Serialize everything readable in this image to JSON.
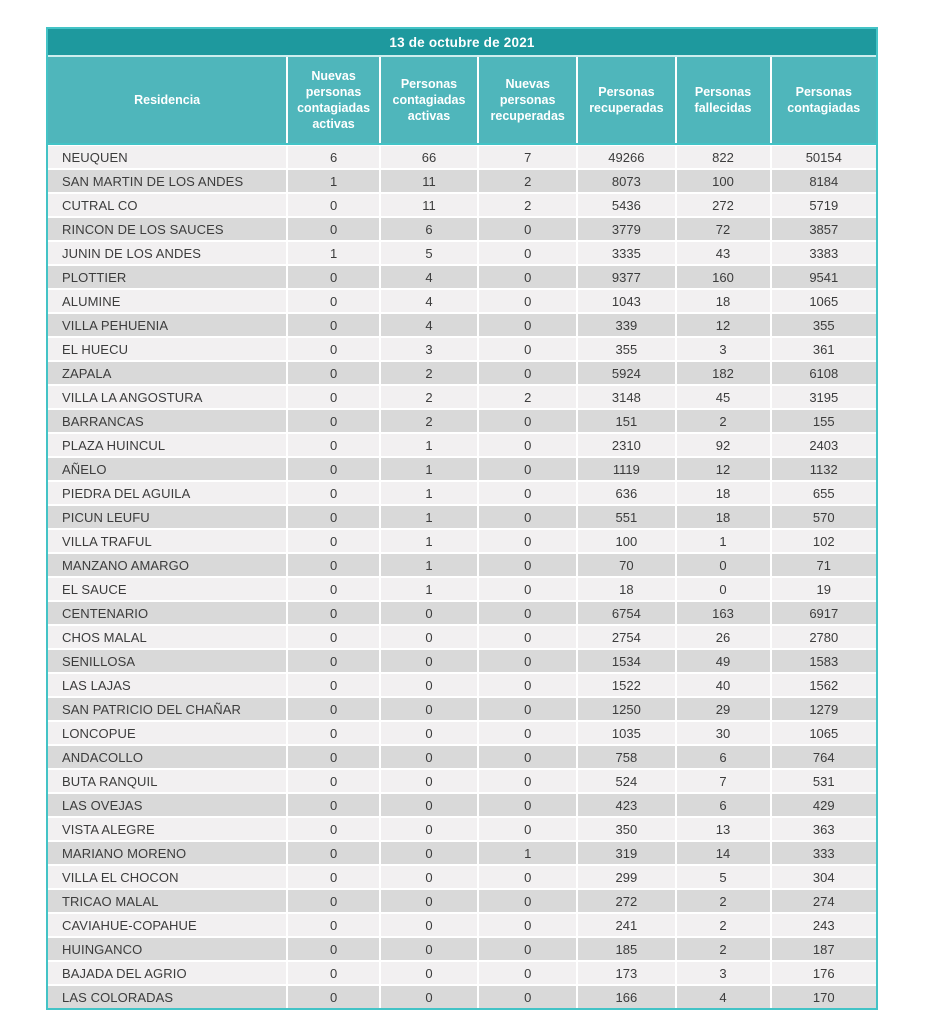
{
  "chart_data": {
    "type": "table",
    "title": "13 de octubre de 2021",
    "columns": [
      "Residencia",
      "Nuevas personas contagiadas activas",
      "Personas contagiadas activas",
      "Nuevas personas recuperadas",
      "Personas recuperadas",
      "Personas fallecidas",
      "Personas contagiadas"
    ],
    "rows": [
      [
        "NEUQUEN",
        6,
        66,
        7,
        49266,
        822,
        50154
      ],
      [
        "SAN MARTIN DE LOS ANDES",
        1,
        11,
        2,
        8073,
        100,
        8184
      ],
      [
        "CUTRAL CO",
        0,
        11,
        2,
        5436,
        272,
        5719
      ],
      [
        "RINCON DE LOS SAUCES",
        0,
        6,
        0,
        3779,
        72,
        3857
      ],
      [
        "JUNIN DE LOS ANDES",
        1,
        5,
        0,
        3335,
        43,
        3383
      ],
      [
        "PLOTTIER",
        0,
        4,
        0,
        9377,
        160,
        9541
      ],
      [
        "ALUMINE",
        0,
        4,
        0,
        1043,
        18,
        1065
      ],
      [
        "VILLA PEHUENIA",
        0,
        4,
        0,
        339,
        12,
        355
      ],
      [
        "EL HUECU",
        0,
        3,
        0,
        355,
        3,
        361
      ],
      [
        "ZAPALA",
        0,
        2,
        0,
        5924,
        182,
        6108
      ],
      [
        "VILLA LA ANGOSTURA",
        0,
        2,
        2,
        3148,
        45,
        3195
      ],
      [
        "BARRANCAS",
        0,
        2,
        0,
        151,
        2,
        155
      ],
      [
        "PLAZA HUINCUL",
        0,
        1,
        0,
        2310,
        92,
        2403
      ],
      [
        "AÑELO",
        0,
        1,
        0,
        1119,
        12,
        1132
      ],
      [
        "PIEDRA DEL AGUILA",
        0,
        1,
        0,
        636,
        18,
        655
      ],
      [
        "PICUN LEUFU",
        0,
        1,
        0,
        551,
        18,
        570
      ],
      [
        "VILLA TRAFUL",
        0,
        1,
        0,
        100,
        1,
        102
      ],
      [
        "MANZANO AMARGO",
        0,
        1,
        0,
        70,
        0,
        71
      ],
      [
        "EL SAUCE",
        0,
        1,
        0,
        18,
        0,
        19
      ],
      [
        "CENTENARIO",
        0,
        0,
        0,
        6754,
        163,
        6917
      ],
      [
        "CHOS MALAL",
        0,
        0,
        0,
        2754,
        26,
        2780
      ],
      [
        "SENILLOSA",
        0,
        0,
        0,
        1534,
        49,
        1583
      ],
      [
        "LAS LAJAS",
        0,
        0,
        0,
        1522,
        40,
        1562
      ],
      [
        "SAN PATRICIO DEL CHAÑAR",
        0,
        0,
        0,
        1250,
        29,
        1279
      ],
      [
        "LONCOPUE",
        0,
        0,
        0,
        1035,
        30,
        1065
      ],
      [
        "ANDACOLLO",
        0,
        0,
        0,
        758,
        6,
        764
      ],
      [
        "BUTA RANQUIL",
        0,
        0,
        0,
        524,
        7,
        531
      ],
      [
        "LAS OVEJAS",
        0,
        0,
        0,
        423,
        6,
        429
      ],
      [
        "VISTA ALEGRE",
        0,
        0,
        0,
        350,
        13,
        363
      ],
      [
        "MARIANO MORENO",
        0,
        0,
        1,
        319,
        14,
        333
      ],
      [
        "VILLA EL CHOCON",
        0,
        0,
        0,
        299,
        5,
        304
      ],
      [
        "TRICAO MALAL",
        0,
        0,
        0,
        272,
        2,
        274
      ],
      [
        "CAVIAHUE-COPAHUE",
        0,
        0,
        0,
        241,
        2,
        243
      ],
      [
        "HUINGANCO",
        0,
        0,
        0,
        185,
        2,
        187
      ],
      [
        "BAJADA DEL AGRIO",
        0,
        0,
        0,
        173,
        3,
        176
      ],
      [
        "LAS COLORADAS",
        0,
        0,
        0,
        166,
        4,
        170
      ]
    ],
    "colors": {
      "title_bg": "#1e999e",
      "header_bg": "#4fb6bb",
      "outer_border": "#43c3c6",
      "row_light": "#f2f0f1",
      "row_dark": "#d9d9d9",
      "header_text": "#ffffff",
      "body_text": "#3c3c3c"
    },
    "layout": {
      "striped": true,
      "header_position": "top"
    }
  }
}
